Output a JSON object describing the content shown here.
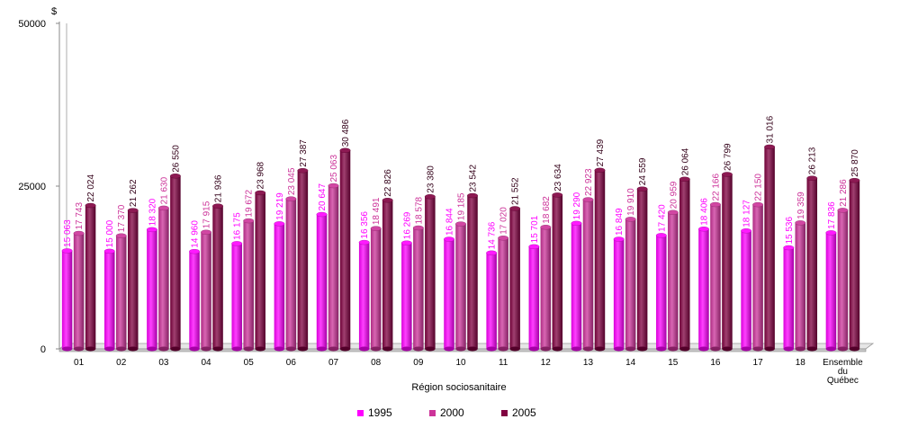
{
  "chart_data": {
    "type": "bar",
    "title": "",
    "ylabel": "$",
    "xlabel": "Région sociosanitaire",
    "ylim": [
      0,
      50000
    ],
    "yticks": [
      "0",
      "25000",
      "50000"
    ],
    "categories": [
      "01",
      "02",
      "03",
      "04",
      "05",
      "06",
      "07",
      "08",
      "09",
      "10",
      "11",
      "12",
      "13",
      "14",
      "15",
      "16",
      "17",
      "18",
      "Ensemble|du|Québec"
    ],
    "legend_position": "bottom",
    "grid": false,
    "series": [
      {
        "name": "1995",
        "color": "#ff00ff",
        "label_color": "#ff00ff",
        "values": [
          15063,
          15000,
          18320,
          14960,
          16175,
          19219,
          20647,
          16356,
          16269,
          16844,
          14736,
          15701,
          19290,
          16849,
          17420,
          18406,
          18127,
          15536,
          17836
        ],
        "labels": [
          "15 063",
          "15 000",
          "18 320",
          "14 960",
          "16 175",
          "19 219",
          "20 647",
          "16 356",
          "16 269",
          "16 844",
          "14 736",
          "15 701",
          "19 290",
          "16 849",
          "17 420",
          "18 406",
          "18 127",
          "15 536",
          "17 836"
        ]
      },
      {
        "name": "2000",
        "color": "#cc3399",
        "label_color": "#cc3399",
        "values": [
          17743,
          17370,
          21630,
          17915,
          19672,
          23045,
          25063,
          18491,
          18578,
          19185,
          17020,
          18682,
          22923,
          19910,
          20959,
          22166,
          22150,
          19359,
          21286
        ],
        "labels": [
          "17 743",
          "17 370",
          "21 630",
          "17 915",
          "19 672",
          "23 045",
          "25 063",
          "18 491",
          "18 578",
          "19 185",
          "17 020",
          "18 682",
          "22 923",
          "19 910",
          "20 959",
          "22 166",
          "22 150",
          "19 359",
          "21 286"
        ]
      },
      {
        "name": "2005",
        "color": "#800040",
        "label_color": "#330019",
        "values": [
          22024,
          21262,
          26550,
          21936,
          23968,
          27387,
          30486,
          22826,
          23380,
          23542,
          21552,
          23634,
          27439,
          24559,
          26064,
          26799,
          31016,
          26213,
          25870
        ],
        "labels": [
          "22 024",
          "21 262",
          "26 550",
          "21 936",
          "23 968",
          "27 387",
          "30 486",
          "22 826",
          "23 380",
          "23 542",
          "21 552",
          "23 634",
          "27 439",
          "24 559",
          "26 064",
          "26 799",
          "31 016",
          "26 213",
          "25 870"
        ]
      }
    ]
  }
}
